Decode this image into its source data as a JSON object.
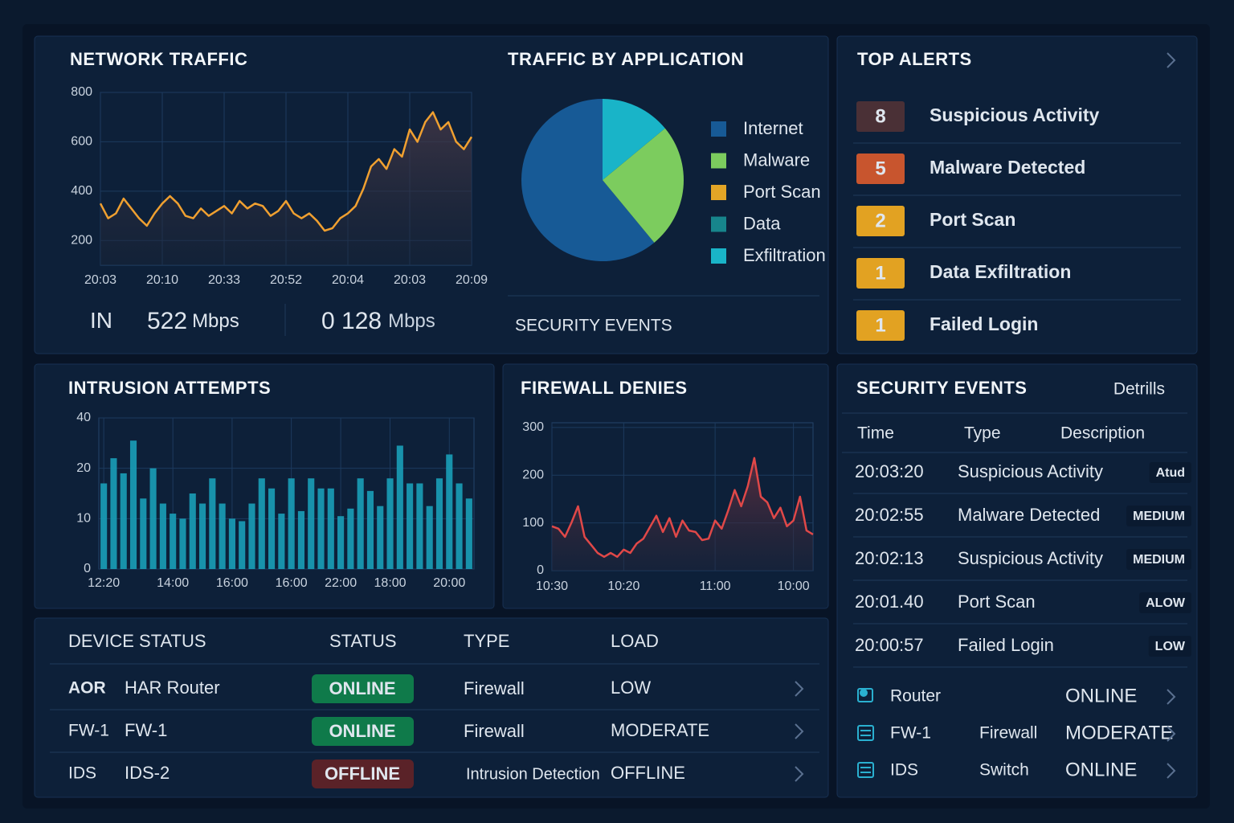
{
  "chart_data": [
    {
      "type": "line",
      "title": "NETWORK TRAFFIC",
      "categories": [
        "20:03",
        null,
        null,
        null,
        null,
        null,
        null,
        null,
        "20:10",
        null,
        null,
        null,
        null,
        null,
        null,
        null,
        "20:33",
        null,
        null,
        null,
        null,
        null,
        null,
        null,
        "20:52",
        null,
        null,
        null,
        null,
        null,
        null,
        null,
        "20:04",
        null,
        null,
        null,
        null,
        null,
        null,
        null,
        "20:03",
        null,
        null,
        null,
        null,
        null,
        null,
        null,
        "20:09"
      ],
      "values": [
        350,
        290,
        310,
        370,
        330,
        290,
        260,
        310,
        350,
        380,
        350,
        300,
        290,
        330,
        300,
        320,
        340,
        310,
        360,
        330,
        350,
        340,
        300,
        320,
        360,
        310,
        290,
        310,
        280,
        240,
        250,
        290,
        310,
        340,
        410,
        500,
        530,
        490,
        570,
        540,
        650,
        600,
        680,
        720,
        650,
        680,
        600,
        570,
        620
      ],
      "color": "#f0a030",
      "ylim": [
        100,
        800
      ],
      "yticks": [
        200,
        400,
        600,
        800
      ],
      "grid": true
    },
    {
      "type": "pie",
      "title": "TRAFFIC BY APPLICATION",
      "categories": [
        "Internet",
        "Malware",
        "Port Scan",
        "Data",
        "Exfiltration"
      ],
      "values": [
        61,
        25,
        0,
        0,
        14
      ],
      "colors": [
        "#175a96",
        "#7ccc5e",
        "#e3a526",
        "#17858c",
        "#19b4c8"
      ]
    },
    {
      "type": "bar",
      "title": "INTRUSION ATTEMPTS",
      "categories": [
        "12:20",
        null,
        null,
        null,
        null,
        null,
        null,
        "14:00",
        null,
        null,
        null,
        null,
        null,
        "16:00",
        null,
        null,
        null,
        null,
        null,
        "16:00",
        null,
        null,
        null,
        null,
        "22:00",
        null,
        null,
        null,
        null,
        "18:00",
        null,
        null,
        null,
        null,
        null,
        "20:00",
        null,
        null
      ],
      "values": [
        17,
        24,
        19,
        31,
        14,
        20,
        13,
        11,
        10,
        15,
        13,
        18,
        13,
        10,
        9.5,
        13,
        18,
        16,
        11,
        18,
        11.5,
        18,
        16,
        16,
        10.5,
        12,
        18,
        15.5,
        12.5,
        18,
        29,
        17,
        17,
        12.5,
        18,
        25.5,
        17,
        14
      ],
      "color": "#1a9fb8",
      "ylim": [
        0,
        40
      ],
      "yticks": [
        0,
        10,
        20,
        40
      ],
      "grid": true
    },
    {
      "type": "line",
      "title": "FIREWALL DENIES",
      "categories": [
        "10:30",
        null,
        null,
        null,
        null,
        null,
        null,
        null,
        null,
        null,
        null,
        "10:20",
        null,
        null,
        null,
        null,
        null,
        null,
        null,
        null,
        null,
        null,
        null,
        null,
        null,
        "11:00",
        null,
        null,
        null,
        null,
        null,
        null,
        null,
        null,
        null,
        null,
        null,
        "10:00",
        null,
        null,
        null
      ],
      "values": [
        93,
        88,
        71,
        101,
        135,
        71,
        54,
        37,
        29,
        37,
        29,
        44,
        37,
        57,
        67,
        91,
        115,
        81,
        110,
        71,
        105,
        84,
        81,
        64,
        67,
        105,
        88,
        126,
        169,
        135,
        177,
        236,
        155,
        143,
        110,
        132,
        93,
        105,
        155,
        84,
        76
      ],
      "color": "#e04848",
      "ylim": [
        0,
        310
      ],
      "yticks": [
        0,
        100,
        200,
        300
      ],
      "grid": true
    }
  ],
  "network_stats": {
    "in_label": "IN",
    "in_value": "522",
    "in_unit": "Mbps",
    "out_value": "0 128",
    "out_unit": "Mbps"
  },
  "pie_footer": "SECURITY EVENTS",
  "top_alerts": {
    "title": "TOP ALERTS",
    "items": [
      {
        "count": 8,
        "label": "Suspicious Activity",
        "color": "#4a3036"
      },
      {
        "count": 5,
        "label": "Malware Detected",
        "color": "#c8552e"
      },
      {
        "count": 2,
        "label": "Port Scan",
        "color": "#e2a222"
      },
      {
        "count": 1,
        "label": "Data Exfiltration",
        "color": "#e2a222"
      },
      {
        "count": 1,
        "label": "Failed Login",
        "color": "#e2a222"
      }
    ]
  },
  "security_events": {
    "title": "SECURITY EVENTS",
    "link": "Detrills",
    "headers": [
      "Time",
      "Type",
      "Description"
    ],
    "rows": [
      {
        "time": "20:03:20",
        "type": "Suspicious Activity",
        "severity": "Atud",
        "color": "#e8c040"
      },
      {
        "time": "20:02:55",
        "type": "Malware Detected",
        "severity": "MEDIUM",
        "color": "#e07a9a"
      },
      {
        "time": "20:02:13",
        "type": "Suspicious Activity",
        "severity": "MEDIUM",
        "color": "#e07a9a"
      },
      {
        "time": "20:01.40",
        "type": "Port Scan",
        "severity": "ALOW",
        "color": "#e8c040"
      },
      {
        "time": "20:00:57",
        "type": "Failed Login",
        "severity": "LOW",
        "color": "#e8c040"
      }
    ],
    "devices": [
      {
        "name": "Router",
        "status": "ONLINE"
      },
      {
        "name": "FW-1",
        "type": "Firewall",
        "status": "MODERATE"
      },
      {
        "name": "IDS",
        "type": "Switch",
        "status": "ONLINE"
      }
    ]
  },
  "device_status": {
    "title": "DEVICE STATUS",
    "headers": [
      "STATUS",
      "TYPE",
      "LOAD"
    ],
    "rows": [
      {
        "id": "AOR",
        "id_color": "#2aa8c8",
        "name": "HAR Router",
        "status": "ONLINE",
        "status_color": "#0f7a4a",
        "status_text_color": "#e8f4ec",
        "type": "Firewall",
        "load": "LOW",
        "load_color": "#dfe6ee"
      },
      {
        "id": "FW-1",
        "id_color": "#dfe6ee",
        "name": "FW-1",
        "status": "ONLINE",
        "status_color": "#0f7a4a",
        "status_text_color": "#e8f4ec",
        "type": "Firewall",
        "load": "MODERATE",
        "load_color": "#dfe6ee"
      },
      {
        "id": "IDS",
        "id_color": "#dfe6ee",
        "name": "IDS-2",
        "status": "OFFLINE",
        "status_color": "#5a2228",
        "status_text_color": "#f07a5a",
        "type": "Intrusion Detection",
        "load": "OFFLINE",
        "load_color": "#f06a4a"
      }
    ]
  }
}
